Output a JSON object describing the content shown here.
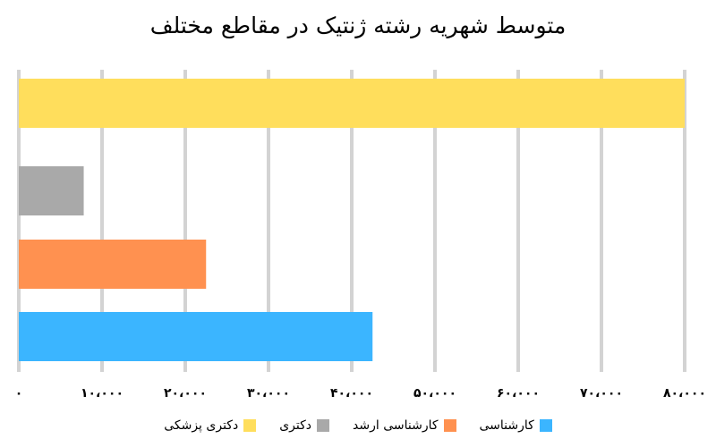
{
  "chart_data": {
    "type": "bar",
    "orientation": "horizontal",
    "title": "متوسط شهریه رشته ژنتیک در مقاطع مختلف",
    "xlabel": "",
    "ylabel": "",
    "xlim": [
      0,
      80000
    ],
    "x_ticks": [
      0,
      10000,
      20000,
      30000,
      40000,
      50000,
      60000,
      70000,
      80000
    ],
    "x_tick_labels": [
      "۰",
      "۱۰،۰۰۰",
      "۲۰،۰۰۰",
      "۳۰،۰۰۰",
      "۴۰،۰۰۰",
      "۵۰،۰۰۰",
      "۶۰،۰۰۰",
      "۷۰،۰۰۰",
      "۸۰،۰۰۰"
    ],
    "grid": true,
    "legend_position": "bottom",
    "series": [
      {
        "name": "دکتری پزشکی",
        "value": 80000,
        "color": "#FFDE5C"
      },
      {
        "name": "دکتری",
        "value": 7800,
        "color": "#A9A9A9"
      },
      {
        "name": "کارشناسی ارشد",
        "value": 22500,
        "color": "#FF9150"
      },
      {
        "name": "کارشناسی",
        "value": 42500,
        "color": "#3BB5FF"
      }
    ],
    "legend_order": [
      "کارشناسی",
      "کارشناسی ارشد",
      "دکتری",
      "دکتری پزشکی"
    ]
  }
}
